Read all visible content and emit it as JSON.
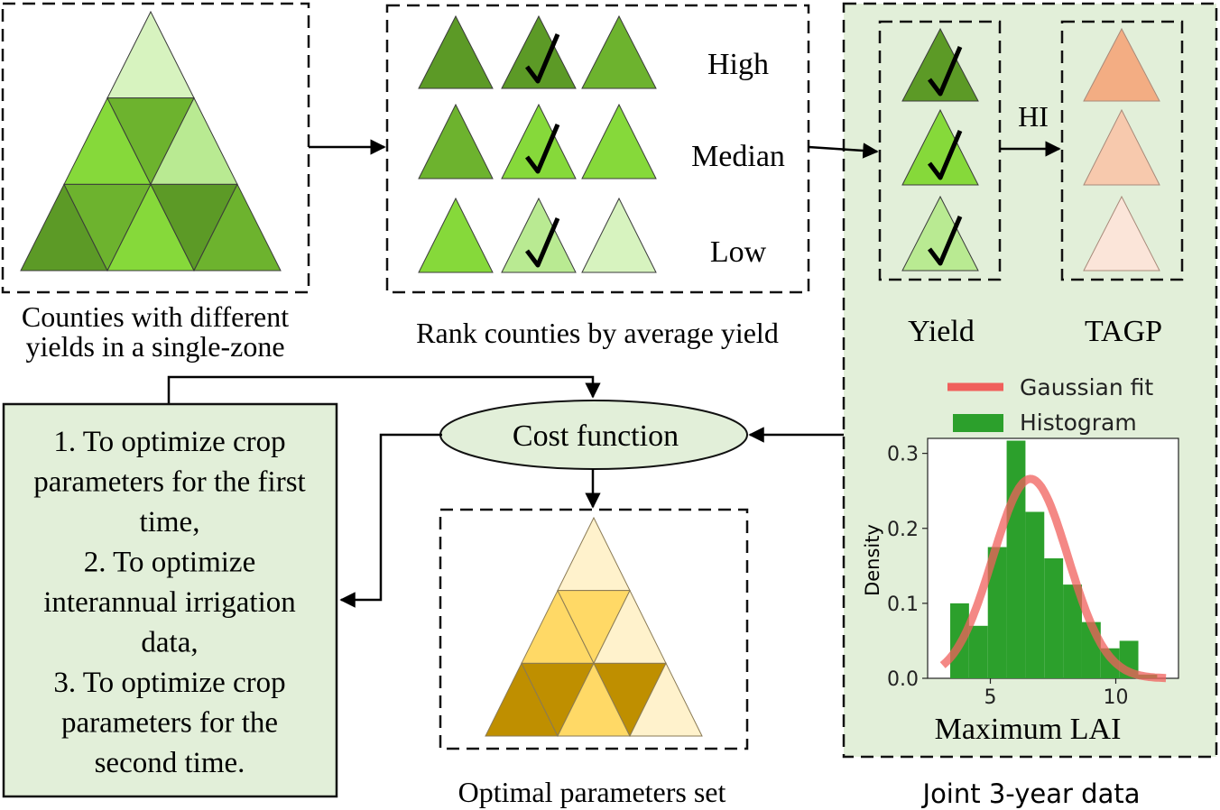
{
  "counties_caption": [
    "Counties with different",
    "yields in a single-zone"
  ],
  "rank_caption": "Rank counties by average yield",
  "rank_levels": [
    "High",
    "Median",
    "Low"
  ],
  "joint_caption": "Joint 3-year data",
  "yield_label": "Yield",
  "tagp_label": "TAGP",
  "hi_label": "HI",
  "cost_function_label": "Cost function",
  "steps_lines": [
    "1. To optimize crop",
    "parameters for the first",
    "time,",
    "2. To optimize",
    "interannual irrigation",
    "data,",
    "3. To optimize crop",
    "parameters for the",
    "second time."
  ],
  "optimal_caption": "Optimal parameters set",
  "colors": {
    "green_dark": "#5c9a26",
    "green_mid": "#6db32e",
    "green_bright": "#86d93a",
    "green_light": "#b9ea92",
    "green_pale": "#d7f3bf",
    "panel_bg": "#e2efd9",
    "orange_1": "#f3ad83",
    "orange_2": "#f7c9ad",
    "orange_3": "#fbe5d9",
    "gold_dark": "#bf8f00",
    "gold_mid": "#ffd966",
    "gold_pale": "#fff2cc",
    "hist_green": "#2ca02c",
    "fit_red": "#f0605c"
  },
  "chart_data": {
    "type": "bar",
    "xlabel": "Maximum LAI",
    "ylabel": "Density",
    "xlim": [
      2.5,
      12.5
    ],
    "ylim": [
      0,
      0.32
    ],
    "xticks": [
      5,
      10
    ],
    "yticks": [
      0.0,
      0.1,
      0.2,
      0.3
    ],
    "grid": false,
    "legend_position": "top",
    "series": [
      {
        "name": "Histogram",
        "type": "bar",
        "bin_edges": [
          3.4,
          4.15,
          4.9,
          5.65,
          6.4,
          7.15,
          7.9,
          8.65,
          9.4,
          10.15,
          10.9,
          11.65
        ],
        "values": [
          0.1,
          0.07,
          0.175,
          0.317,
          0.222,
          0.16,
          0.125,
          0.075,
          0.04,
          0.05,
          0.005
        ]
      },
      {
        "name": "Gaussian fit",
        "type": "line",
        "mean": 6.6,
        "std": 1.5,
        "peak": 0.266,
        "x_range": [
          3.1,
          12.0
        ]
      }
    ]
  }
}
